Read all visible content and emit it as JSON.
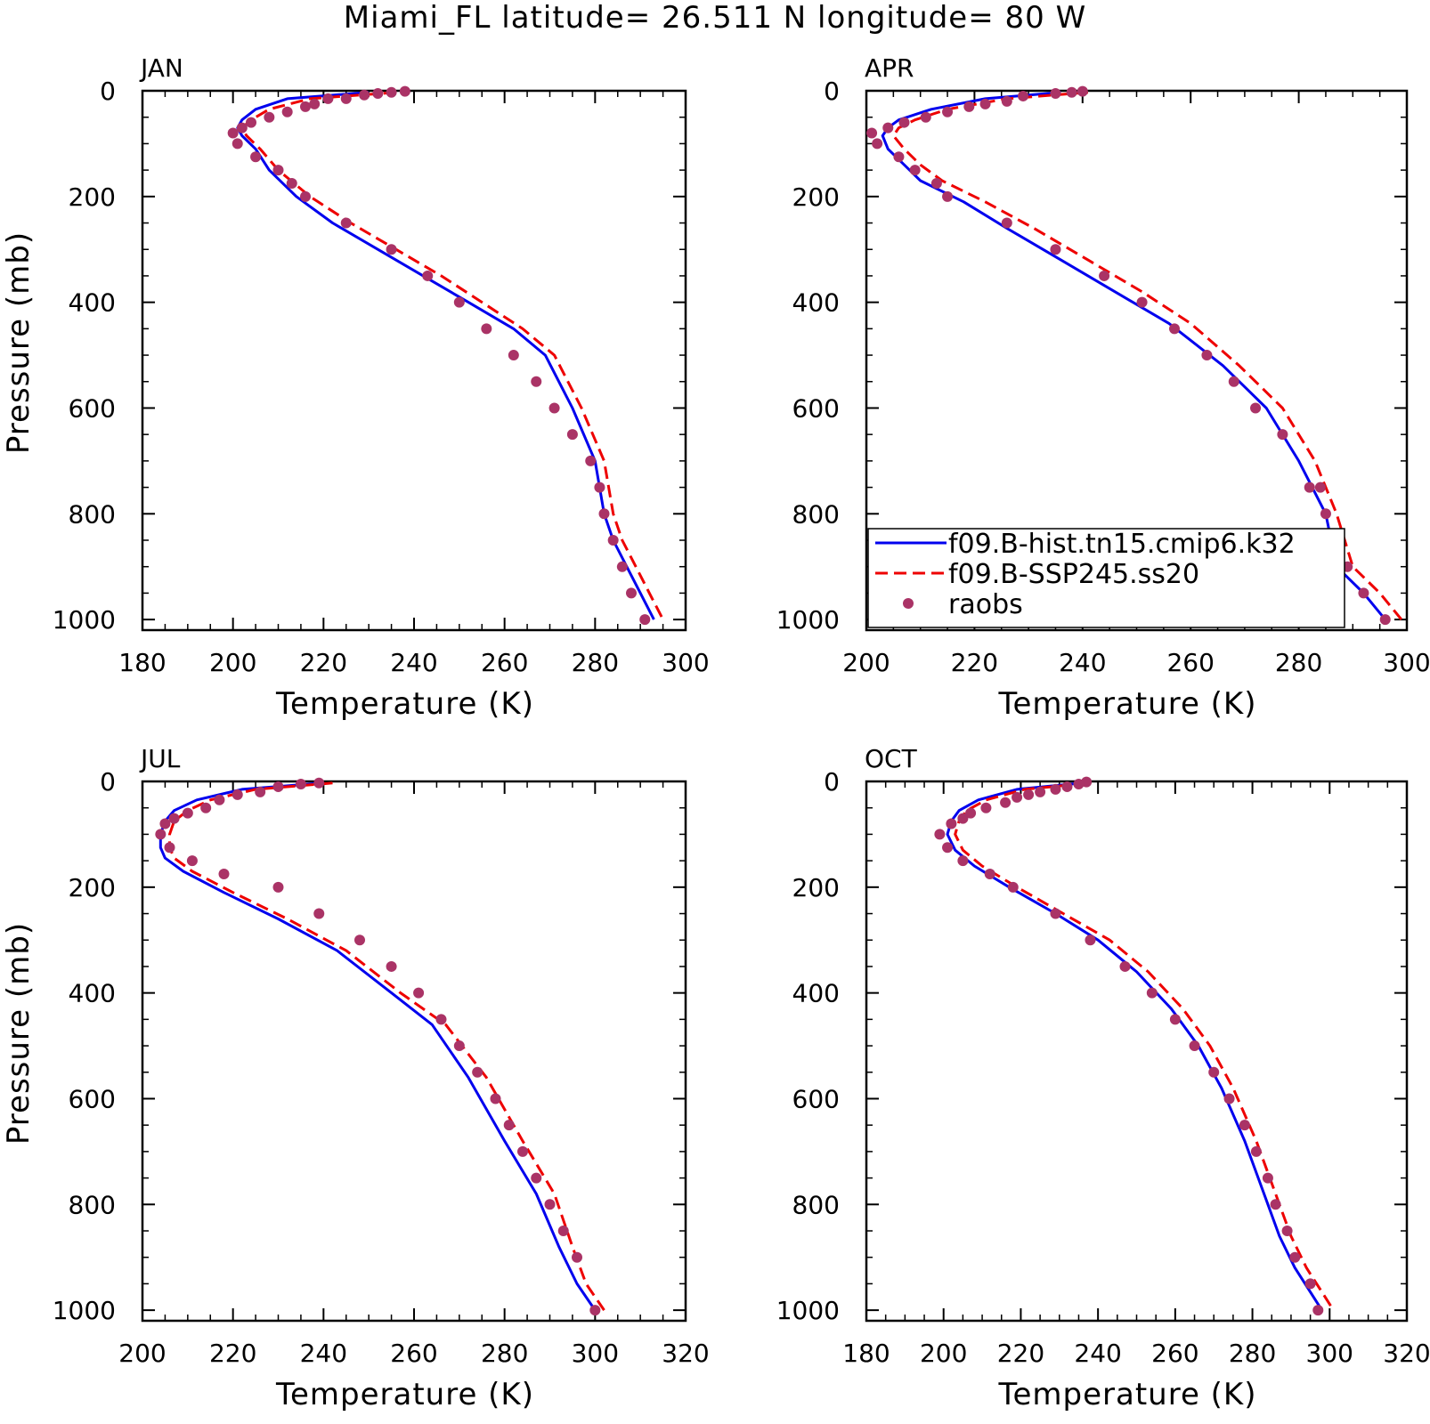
{
  "figure": {
    "title": "Miami_FL  latitude= 26.511 N longitude= 80 W"
  },
  "series_styles": {
    "hist": {
      "color": "#0000ee"
    },
    "ssp": {
      "color": "#ee0000"
    },
    "raobs": {
      "color": "#aa3366"
    }
  },
  "legend": {
    "entries": [
      {
        "name": "f09.B-hist.tn15.cmip6.k32"
      },
      {
        "name": "f09.B-SSP245.ss20"
      },
      {
        "name": "raobs"
      }
    ]
  },
  "chart_data": [
    {
      "type": "line",
      "panel": "JAN",
      "title": "JAN",
      "xlabel": "Temperature (K)",
      "ylabel": "Pressure (mb)",
      "xlim": [
        180,
        300
      ],
      "ylim": [
        1020,
        0
      ],
      "xticks": [
        180,
        200,
        220,
        240,
        260,
        280,
        300
      ],
      "yticks": [
        0,
        200,
        400,
        600,
        800,
        1000
      ],
      "y_reversed": true,
      "grid": false,
      "series": [
        {
          "name": "f09.B-hist.tn15.cmip6.k32",
          "style": "solid",
          "x": [
            230,
            212,
            205,
            202,
            201,
            202,
            205,
            208,
            214,
            222,
            232,
            242,
            252,
            262,
            269,
            275,
            280,
            282,
            284,
            287,
            290,
            293
          ],
          "y": [
            3,
            15,
            35,
            55,
            70,
            85,
            110,
            150,
            200,
            250,
            300,
            350,
            400,
            450,
            500,
            600,
            700,
            800,
            850,
            900,
            950,
            1000
          ]
        },
        {
          "name": "f09.B-SSP245.ss20",
          "style": "dashed",
          "x": [
            236,
            217,
            208,
            204,
            202,
            203,
            206,
            210,
            217,
            226,
            236,
            246,
            255,
            264,
            271,
            277,
            282,
            284,
            286,
            289,
            292,
            295
          ],
          "y": [
            3,
            15,
            35,
            55,
            70,
            85,
            110,
            150,
            200,
            250,
            300,
            350,
            400,
            450,
            500,
            600,
            700,
            800,
            850,
            900,
            950,
            1000
          ]
        },
        {
          "name": "raobs",
          "style": "markers",
          "x": [
            238,
            235,
            232,
            229,
            225,
            221,
            218,
            216,
            212,
            208,
            204,
            202,
            200,
            201,
            205,
            210,
            213,
            216,
            225,
            235,
            243,
            250,
            256,
            262,
            267,
            271,
            275,
            279,
            281,
            282,
            284,
            286,
            288,
            291
          ],
          "y": [
            1,
            3,
            5,
            8,
            15,
            15,
            25,
            30,
            40,
            50,
            60,
            70,
            80,
            100,
            125,
            150,
            175,
            200,
            250,
            300,
            350,
            400,
            450,
            500,
            550,
            600,
            650,
            700,
            750,
            800,
            850,
            900,
            950,
            1000
          ]
        }
      ]
    },
    {
      "type": "line",
      "panel": "APR",
      "title": "APR",
      "xlabel": "Temperature (K)",
      "ylabel": "",
      "xlim": [
        200,
        300
      ],
      "ylim": [
        1020,
        0
      ],
      "xticks": [
        200,
        220,
        240,
        260,
        280,
        300
      ],
      "yticks": [
        0,
        200,
        400,
        600,
        800,
        1000
      ],
      "y_reversed": true,
      "grid": false,
      "legend_position": "bottom-left",
      "series": [
        {
          "name": "f09.B-hist.tn15.cmip6.k32",
          "style": "solid",
          "x": [
            236,
            222,
            212,
            206,
            204,
            203,
            204,
            207,
            210,
            218,
            226,
            236,
            246,
            256,
            266,
            274,
            280,
            285,
            287,
            292,
            296
          ],
          "y": [
            3,
            15,
            35,
            55,
            70,
            85,
            110,
            140,
            170,
            210,
            260,
            320,
            380,
            440,
            520,
            600,
            700,
            800,
            900,
            950,
            1000
          ]
        },
        {
          "name": "f09.B-SSP245.ss20",
          "style": "dashed",
          "x": [
            241,
            226,
            215,
            209,
            206,
            205,
            207,
            210,
            214,
            222,
            231,
            241,
            251,
            260,
            269,
            277,
            283,
            287,
            290,
            295,
            299
          ],
          "y": [
            3,
            15,
            35,
            55,
            70,
            85,
            110,
            140,
            170,
            210,
            260,
            320,
            380,
            440,
            520,
            600,
            700,
            800,
            900,
            950,
            1000
          ]
        },
        {
          "name": "raobs",
          "style": "markers",
          "x": [
            240,
            238,
            235,
            229,
            226,
            222,
            219,
            215,
            211,
            207,
            204,
            201,
            202,
            206,
            209,
            213,
            215,
            226,
            235,
            244,
            251,
            257,
            263,
            268,
            272,
            277,
            282,
            284,
            285,
            287,
            289,
            292,
            296
          ],
          "y": [
            1,
            3,
            5,
            10,
            20,
            25,
            30,
            40,
            50,
            60,
            70,
            80,
            100,
            125,
            150,
            175,
            200,
            250,
            300,
            350,
            400,
            450,
            500,
            550,
            600,
            650,
            750,
            750,
            800,
            850,
            900,
            950,
            1000
          ]
        }
      ]
    },
    {
      "type": "line",
      "panel": "JUL",
      "title": "JUL",
      "xlabel": "Temperature (K)",
      "ylabel": "Pressure (mb)",
      "xlim": [
        200,
        320
      ],
      "ylim": [
        1020,
        0
      ],
      "xticks": [
        200,
        220,
        240,
        260,
        280,
        300,
        320
      ],
      "yticks": [
        0,
        200,
        400,
        600,
        800,
        1000
      ],
      "y_reversed": true,
      "grid": false,
      "series": [
        {
          "name": "f09.B-hist.tn15.cmip6.k32",
          "style": "solid",
          "x": [
            240,
            222,
            212,
            207,
            205,
            204,
            204,
            205,
            209,
            218,
            230,
            243,
            255,
            264,
            272,
            280,
            287,
            292,
            296,
            300
          ],
          "y": [
            3,
            15,
            35,
            55,
            75,
            100,
            125,
            145,
            170,
            210,
            260,
            320,
            400,
            460,
            560,
            680,
            780,
            880,
            950,
            1000
          ]
        },
        {
          "name": "f09.B-SSP245.ss20",
          "style": "dashed",
          "x": [
            242,
            225,
            215,
            210,
            207,
            206,
            206,
            207,
            211,
            220,
            232,
            245,
            257,
            267,
            276,
            284,
            291,
            295,
            298,
            302
          ],
          "y": [
            3,
            15,
            35,
            55,
            75,
            100,
            125,
            145,
            170,
            210,
            260,
            320,
            400,
            460,
            560,
            680,
            780,
            880,
            950,
            1000
          ]
        },
        {
          "name": "raobs",
          "style": "markers",
          "x": [
            239,
            235,
            230,
            226,
            221,
            217,
            214,
            210,
            207,
            205,
            204,
            206,
            211,
            218,
            230,
            239,
            248,
            255,
            261,
            266,
            270,
            274,
            278,
            281,
            284,
            287,
            290,
            293,
            296,
            300
          ],
          "y": [
            3,
            5,
            10,
            20,
            25,
            35,
            50,
            60,
            70,
            80,
            100,
            125,
            150,
            175,
            200,
            250,
            300,
            350,
            400,
            450,
            500,
            550,
            600,
            650,
            700,
            750,
            800,
            850,
            900,
            1000
          ]
        }
      ]
    },
    {
      "type": "line",
      "panel": "OCT",
      "title": "OCT",
      "xlabel": "Temperature (K)",
      "ylabel": "",
      "xlim": [
        180,
        320
      ],
      "ylim": [
        1020,
        0
      ],
      "xticks": [
        180,
        200,
        220,
        240,
        260,
        280,
        300,
        320
      ],
      "yticks": [
        0,
        200,
        400,
        600,
        800,
        1000
      ],
      "y_reversed": true,
      "grid": false,
      "series": [
        {
          "name": "f09.B-hist.tn15.cmip6.k32",
          "style": "solid",
          "x": [
            236,
            219,
            209,
            204,
            202,
            201,
            203,
            208,
            217,
            229,
            240,
            250,
            259,
            266,
            272,
            278,
            283,
            287,
            291,
            298
          ],
          "y": [
            3,
            15,
            35,
            55,
            75,
            100,
            130,
            160,
            200,
            250,
            300,
            360,
            430,
            500,
            580,
            680,
            780,
            860,
            920,
            1000
          ]
        },
        {
          "name": "f09.B-SSP245.ss20",
          "style": "dashed",
          "x": [
            238,
            221,
            211,
            206,
            204,
            203,
            205,
            210,
            219,
            231,
            243,
            253,
            262,
            269,
            275,
            281,
            286,
            290,
            294,
            301
          ],
          "y": [
            3,
            15,
            35,
            55,
            75,
            100,
            130,
            160,
            200,
            250,
            300,
            360,
            430,
            500,
            580,
            680,
            780,
            860,
            920,
            1000
          ]
        },
        {
          "name": "raobs",
          "style": "markers",
          "x": [
            237,
            235,
            232,
            229,
            225,
            222,
            219,
            216,
            211,
            207,
            205,
            202,
            199,
            201,
            205,
            212,
            218,
            229,
            238,
            247,
            254,
            260,
            265,
            270,
            274,
            278,
            281,
            284,
            286,
            289,
            291,
            295,
            297
          ],
          "y": [
            1,
            5,
            10,
            15,
            20,
            25,
            30,
            40,
            50,
            60,
            70,
            80,
            100,
            125,
            150,
            175,
            200,
            250,
            300,
            350,
            400,
            450,
            500,
            550,
            600,
            650,
            700,
            750,
            800,
            850,
            900,
            950,
            1000
          ]
        }
      ]
    }
  ]
}
